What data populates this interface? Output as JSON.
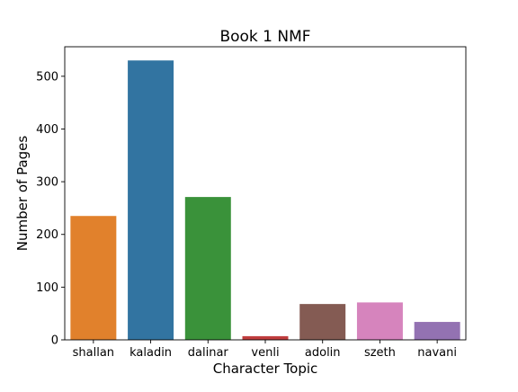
{
  "chart_data": {
    "type": "bar",
    "title": "Book 1 NMF",
    "xlabel": "Character Topic",
    "ylabel": "Number of Pages",
    "categories": [
      "shallan",
      "kaladin",
      "dalinar",
      "venli",
      "adolin",
      "szeth",
      "navani"
    ],
    "values": [
      235,
      530,
      271,
      7,
      68,
      71,
      34
    ],
    "colors": [
      "#e1812c",
      "#3274a1",
      "#3a923a",
      "#c03d3e",
      "#845b53",
      "#d684bd",
      "#9372b2"
    ],
    "ylim": [
      0,
      556
    ],
    "yticks": [
      0,
      100,
      200,
      300,
      400,
      500
    ],
    "grid": false,
    "legend": "none"
  }
}
